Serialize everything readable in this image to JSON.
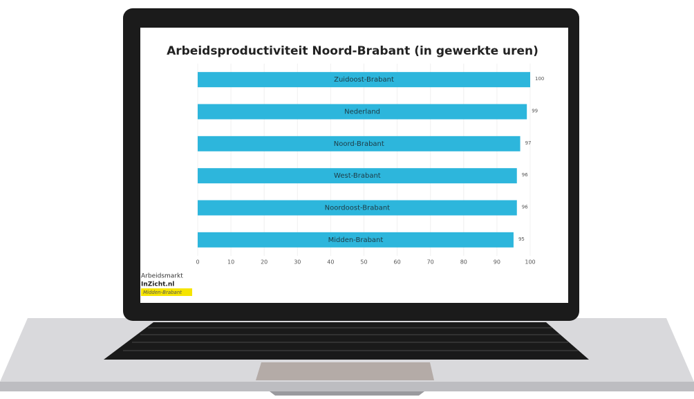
{
  "chart_data": {
    "type": "bar",
    "orientation": "horizontal",
    "title": "Arbeidsproductiviteit Noord-Brabant (in gewerkte uren)",
    "categories": [
      "Zuidoost-Brabant",
      "Nederland",
      "Noord-Brabant",
      "West-Brabant",
      "Noordoost-Brabant",
      "Midden-Brabant"
    ],
    "values": [
      100,
      99,
      97,
      96,
      96,
      95
    ],
    "color": "#2db6dc",
    "xlim": [
      0,
      100
    ],
    "xticks": [
      0,
      10,
      20,
      30,
      40,
      50,
      60,
      70,
      80,
      90,
      100
    ],
    "grid": true
  },
  "logo": {
    "line1": "Arbeidsmarkt",
    "line2": "InZicht.nl",
    "line3": "Midden-Brabant"
  }
}
